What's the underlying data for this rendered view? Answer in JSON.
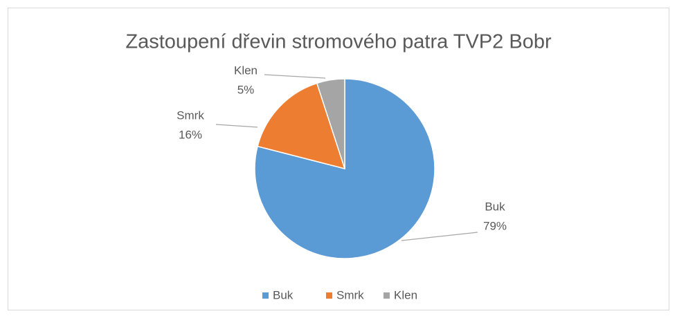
{
  "chart_data": {
    "type": "pie",
    "title": "Zastoupení dřevin stromového patra TVP2 Bobr",
    "categories": [
      "Buk",
      "Smrk",
      "Klen"
    ],
    "values": [
      79,
      16,
      5
    ],
    "value_labels": [
      "79%",
      "16%",
      "5%"
    ],
    "colors": [
      "#5b9bd5",
      "#ed7d31",
      "#a5a5a5"
    ],
    "legend": "bottom"
  }
}
